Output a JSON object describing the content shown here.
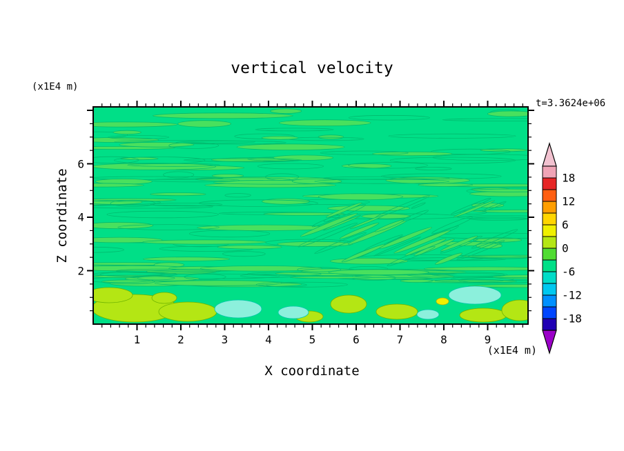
{
  "title": "vertical velocity",
  "timestamp": "t=3.3624e+06",
  "x_axis": {
    "label": "X coordinate",
    "unit": "(x1E4 m)",
    "ticks": [
      "1",
      "2",
      "3",
      "4",
      "5",
      "6",
      "7",
      "8",
      "9"
    ]
  },
  "y_axis": {
    "label": "Z coordinate",
    "unit": "(x1E4 m)",
    "ticks": [
      "2",
      "4",
      "6"
    ]
  },
  "colorbar": {
    "labels": [
      "18",
      "12",
      "6",
      "0",
      "-6",
      "-12",
      "-18"
    ],
    "top_arrow_color": "#f2c2d0",
    "bottom_arrow_color": "#9b00c8",
    "segment_colors": [
      "#f0a4b6",
      "#e62626",
      "#ff5f12",
      "#ff9e00",
      "#ffd500",
      "#f0f000",
      "#b4e614",
      "#50dc32",
      "#00df87",
      "#00dcc8",
      "#00c8f0",
      "#0090ff",
      "#0046ff",
      "#2000b4"
    ]
  },
  "field": {
    "background_color": "#00df87",
    "streak_fill": "#49e05e",
    "contour_line_color": "#00bb6e",
    "updraft_color": "#b4e614",
    "downdraft_color": "#8cf0dc",
    "core_color": "#f0f000"
  },
  "chart_data": {
    "type": "heatmap",
    "title": "vertical velocity",
    "xlabel": "X coordinate (x1E4 m)",
    "ylabel": "Z coordinate (x1E4 m)",
    "time_label": "t=3.3624e+06",
    "x_range": [
      0,
      9.9
    ],
    "z_range": [
      0,
      8.1
    ],
    "x_major_ticks": [
      1,
      2,
      3,
      4,
      5,
      6,
      7,
      8,
      9
    ],
    "z_major_ticks": [
      2,
      4,
      6
    ],
    "colorbar_ticks": [
      18,
      12,
      6,
      0,
      -6,
      -12,
      -18
    ],
    "contour_interval": 3,
    "value_extent": [
      -21,
      21
    ],
    "description": "Filled-contour vertical cross-section of vertical velocity. Interior dominated by near-zero values (green, -3..+3) threaded with thin horizontal wave streaks; short tilted streaks near x=6-9, z=2.5-4. Below z≈2x1E4 m a convective layer shows updraft cells of +3..+6 (yellow-green, strongest near x=1-3 and x=7-8) and downdraft patches of -3..-6 (pale cyan near x=3.2, x=4.6 and x=8.7)."
  }
}
